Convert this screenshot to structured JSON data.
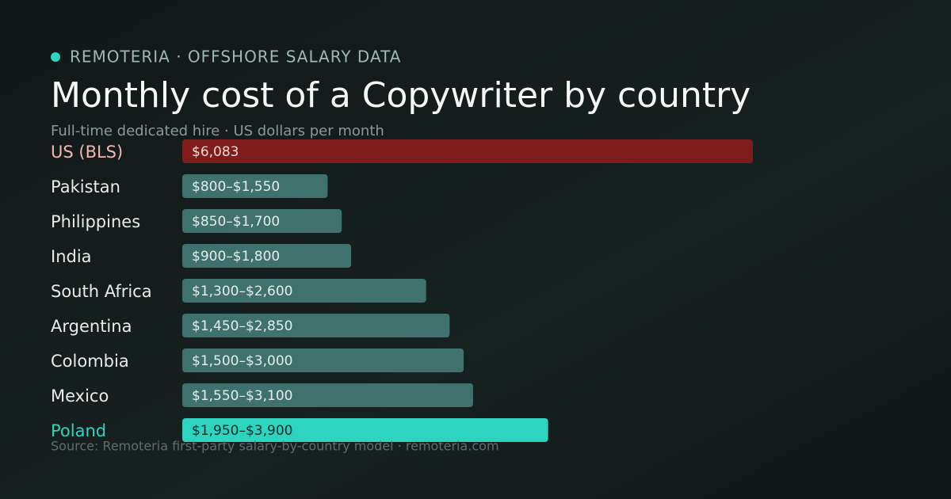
{
  "eyebrow": "REMOTERIA · OFFSHORE SALARY DATA",
  "chart_data": {
    "type": "bar",
    "orientation": "horizontal",
    "title": "Monthly cost of a Copywriter by country",
    "subtitle": "Full-time dedicated hire · US dollars per month",
    "source": "Source: Remoteria first-party salary-by-country model · remoteria.com",
    "categories": [
      "US (BLS)",
      "Pakistan",
      "Philippines",
      "India",
      "South Africa",
      "Argentina",
      "Colombia",
      "Mexico",
      "Poland"
    ],
    "values": [
      6083,
      1550,
      1700,
      1800,
      2600,
      2850,
      3000,
      3100,
      3900
    ],
    "value_labels": [
      "$6,083",
      "$800–$1,550",
      "$850–$1,700",
      "$900–$1,800",
      "$1,300–$2,600",
      "$1,450–$2,850",
      "$1,500–$3,000",
      "$1,550–$3,100",
      "$1,950–$3,900"
    ],
    "colors": [
      "#7f1d1d",
      "#3f726c",
      "#3f726c",
      "#3f726c",
      "#3f726c",
      "#3f726c",
      "#3f726c",
      "#3f726c",
      "#2dd4bf"
    ],
    "label_colors": [
      "#f5b5b5",
      "#e6ecea",
      "#e6ecea",
      "#e6ecea",
      "#e6ecea",
      "#e6ecea",
      "#e6ecea",
      "#e6ecea",
      "#2dd4bf"
    ],
    "value_label_colors": [
      "#f3dada",
      "#e6ecea",
      "#e6ecea",
      "#e6ecea",
      "#e6ecea",
      "#e6ecea",
      "#e6ecea",
      "#e6ecea",
      "#0f2a27"
    ]
  }
}
